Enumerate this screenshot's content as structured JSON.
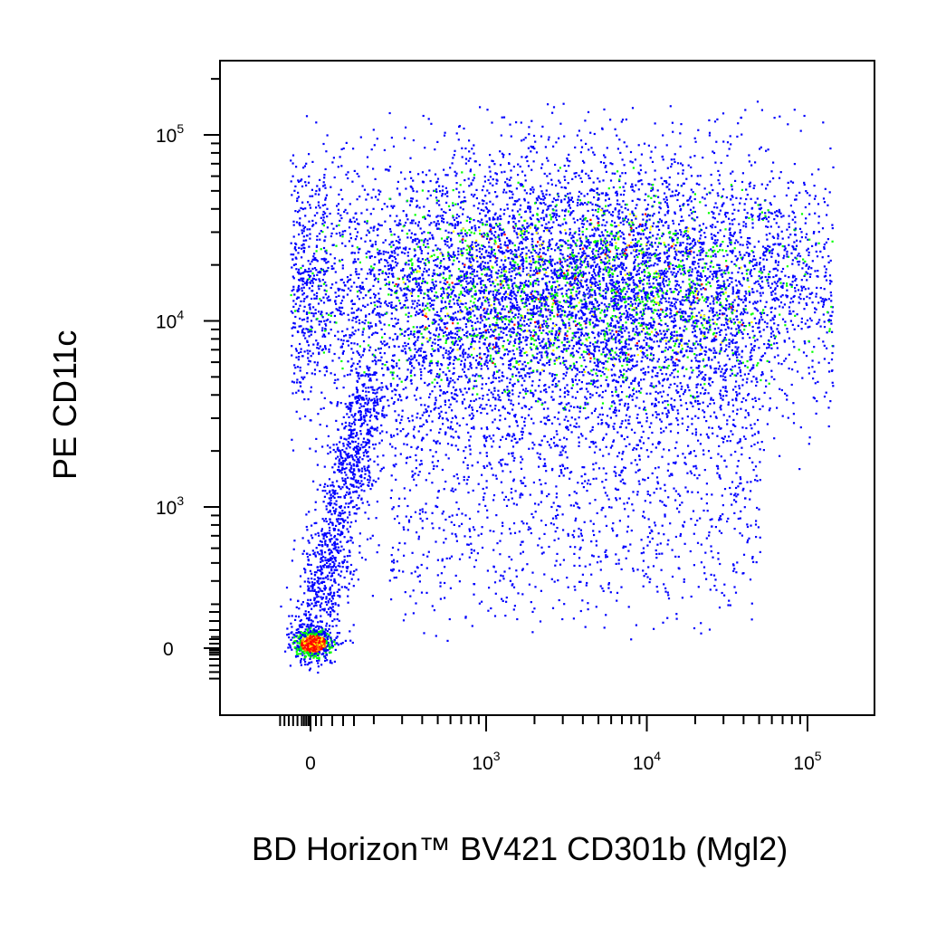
{
  "chart_data": {
    "type": "scatter",
    "title": "",
    "xlabel": "BD Horizon™ BV421 CD301b (Mgl2)",
    "ylabel": "PE  CD11c",
    "x_scale": "biexponential",
    "y_scale": "biexponential",
    "xlim": [
      -300,
      200000
    ],
    "ylim": [
      -150,
      250000
    ],
    "x_ticks": [
      {
        "value": 0,
        "base": "0",
        "exp": ""
      },
      {
        "value": 1000,
        "base": "10",
        "exp": "3"
      },
      {
        "value": 10000,
        "base": "10",
        "exp": "4"
      },
      {
        "value": 100000,
        "base": "10",
        "exp": "5"
      }
    ],
    "y_ticks": [
      {
        "value": 0,
        "base": "0",
        "exp": ""
      },
      {
        "value": 1000,
        "base": "10",
        "exp": "3"
      },
      {
        "value": 10000,
        "base": "10",
        "exp": "4"
      },
      {
        "value": 100000,
        "base": "10",
        "exp": "5"
      }
    ],
    "density_colors": [
      "#0000ff",
      "#00ff00",
      "#ffff00",
      "#ff8000",
      "#ff0000"
    ],
    "populations": [
      {
        "name": "",
        "x_center": 3500,
        "y_center": 15000,
        "x_spread_decades": 0.95,
        "y_spread_decades": 0.35,
        "fraction": 0.78
      },
      {
        "name": "",
        "x_center": 0,
        "y_center": 0,
        "x_spread": 40,
        "y_spread": 40,
        "fraction": 0.1
      }
    ],
    "grid": false,
    "legend": "none"
  }
}
